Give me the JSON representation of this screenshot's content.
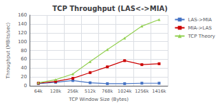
{
  "chart_data": {
    "type": "line",
    "title": "TCP Throughput (LAS<->MIA)",
    "xlabel": "TCP Window Size (Bytes)",
    "ylabel": "Throughput (MBits/sec)",
    "categories": [
      "64k",
      "128k",
      "256k",
      "512k",
      "768k",
      "1024k",
      "1256k",
      "1416k"
    ],
    "series": [
      {
        "name": "LAS->MIA",
        "color": "#4472C4",
        "marker": "square",
        "values": [
          5,
          8,
          12,
          7,
          5,
          5,
          6,
          6
        ]
      },
      {
        "name": "MIA->LAS",
        "color": "#CC0000",
        "marker": "square",
        "values": [
          6,
          10,
          17,
          30,
          43,
          57,
          48,
          50
        ]
      },
      {
        "name": "TCP Theory",
        "color": "#92D050",
        "marker": "triangle",
        "values": [
          7,
          14,
          27,
          55,
          82,
          108,
          135,
          150
        ]
      }
    ],
    "ylim": [
      0,
      160
    ],
    "yticks": [
      0,
      20,
      40,
      60,
      80,
      100,
      120,
      140,
      160
    ],
    "grid": true,
    "legend": "right"
  }
}
